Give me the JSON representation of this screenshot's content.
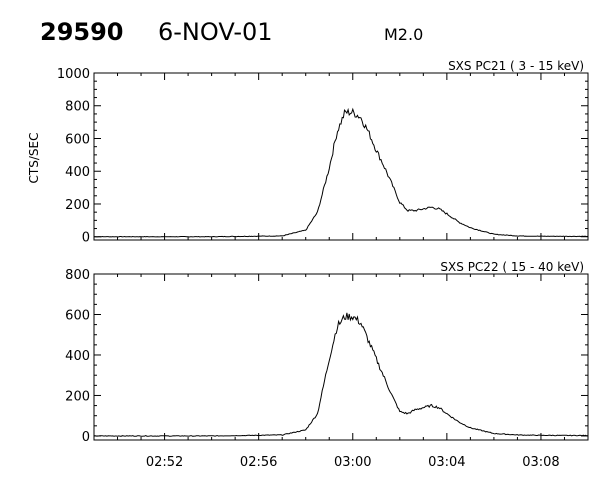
{
  "header": {
    "event_id": "29590",
    "date": "6-NOV-01",
    "flare_class": "M2.0"
  },
  "chart_data": [
    {
      "type": "line",
      "title": "SXS PC21  (  3 - 15 keV)",
      "ylabel": "CTS/SEC",
      "xlim": [
        "02:49:00",
        "03:10:00"
      ],
      "ylim": [
        -20,
        1000
      ],
      "yticks": [
        0,
        200,
        400,
        600,
        800,
        1000
      ],
      "series": [
        {
          "x": [
            "02:49:00",
            "02:54:00",
            "02:57:00",
            "02:58:00",
            "02:58:30",
            "02:59:00",
            "02:59:20",
            "02:59:40",
            "03:00:00",
            "03:00:20",
            "03:00:40",
            "03:01:00",
            "03:01:20",
            "03:01:40",
            "03:02:00",
            "03:02:20",
            "03:02:40",
            "03:03:00",
            "03:03:20",
            "03:03:40",
            "03:04:00",
            "03:04:30",
            "03:05:00",
            "03:06:00",
            "03:07:00",
            "03:08:00",
            "03:10:00"
          ],
          "values": [
            0,
            0,
            5,
            40,
            150,
            420,
            640,
            760,
            760,
            730,
            640,
            530,
            430,
            320,
            210,
            160,
            160,
            170,
            180,
            170,
            140,
            90,
            55,
            15,
            5,
            3,
            2
          ]
        }
      ]
    },
    {
      "type": "line",
      "title": "SXS PC22  ( 15 - 40 keV)",
      "ylabel": "",
      "xlim": [
        "02:49:00",
        "03:10:00"
      ],
      "ylim": [
        -20,
        800
      ],
      "yticks": [
        0,
        200,
        400,
        600,
        800
      ],
      "xticks": [
        "02:52",
        "02:56",
        "03:00",
        "03:04",
        "03:08"
      ],
      "series": [
        {
          "x": [
            "02:49:00",
            "02:54:00",
            "02:57:00",
            "02:58:00",
            "02:58:30",
            "02:59:00",
            "02:59:20",
            "02:59:40",
            "03:00:00",
            "03:00:20",
            "03:00:40",
            "03:01:00",
            "03:01:20",
            "03:01:40",
            "03:02:00",
            "03:02:20",
            "03:02:40",
            "03:03:00",
            "03:03:20",
            "03:03:40",
            "03:04:00",
            "03:04:30",
            "03:05:00",
            "03:06:00",
            "03:07:00",
            "03:08:00",
            "03:10:00"
          ],
          "values": [
            0,
            0,
            5,
            30,
            110,
            380,
            540,
            590,
            590,
            560,
            470,
            380,
            290,
            200,
            120,
            110,
            130,
            140,
            150,
            140,
            110,
            70,
            40,
            12,
            5,
            3,
            2
          ]
        }
      ]
    }
  ]
}
